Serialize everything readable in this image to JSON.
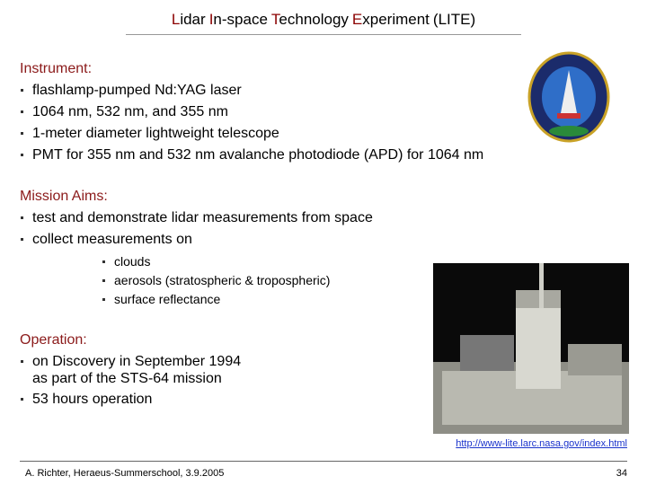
{
  "title": {
    "words": [
      "Lidar",
      "In-space",
      "Technology",
      "Experiment",
      "(LITE)"
    ]
  },
  "sections": [
    {
      "heading": "Instrument:",
      "items": [
        "flashlamp-pumped Nd:YAG laser",
        "1064 nm, 532 nm, and 355 nm",
        "1-meter diameter lightweight telescope",
        "PMT for 355 nm and 532 nm avalanche photodiode (APD) for 1064 nm"
      ]
    },
    {
      "heading": "Mission Aims:",
      "items": [
        "test and demonstrate lidar measurements from space",
        "collect measurements on"
      ],
      "subitems": [
        "clouds",
        "aerosols (stratospheric & tropospheric)",
        "surface reflectance"
      ]
    },
    {
      "heading": "Operation:",
      "items": [
        [
          "on Discovery in September 1994",
          "as part of the STS-64 mission"
        ],
        [
          "53 hours operation"
        ]
      ]
    }
  ],
  "link": "http://www-lite.larc.nasa.gov/index.html",
  "footer": {
    "left": "A. Richter, Heraeus-Summerschool, 3.9.2005",
    "page": "34"
  }
}
